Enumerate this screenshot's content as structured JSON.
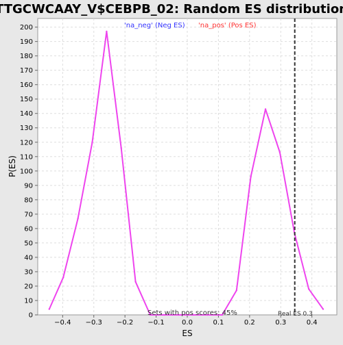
{
  "chart_data": {
    "type": "line",
    "title": "TTGCWCAAY_V$CEBPB_02: Random ES distribution",
    "xlabel": "ES",
    "ylabel": "P(ES)",
    "xlim": [
      -0.48,
      0.48
    ],
    "ylim": [
      0,
      206
    ],
    "x_ticks": [
      -0.4,
      -0.3,
      -0.2,
      -0.1,
      0.0,
      0.1,
      0.2,
      0.3,
      0.4
    ],
    "x_tick_labels": [
      "−0.4",
      "−0.3",
      "−0.2",
      "−0.1",
      "0.0",
      "0.1",
      "0.2",
      "0.3",
      "0.4"
    ],
    "y_ticks": [
      0,
      10,
      20,
      30,
      40,
      50,
      60,
      70,
      80,
      90,
      100,
      110,
      120,
      130,
      140,
      150,
      160,
      170,
      180,
      190,
      200
    ],
    "grid": true,
    "legend": {
      "placement": "top",
      "entries": [
        {
          "label": "'na_neg' (Neg ES)",
          "color": "#3333ff"
        },
        {
          "label": "'na_pos' (Pos ES)",
          "color": "#ff3333"
        }
      ]
    },
    "series": [
      {
        "color": "#ee44ee",
        "x": [
          -0.443,
          -0.398,
          -0.351,
          -0.305,
          -0.259,
          -0.212,
          -0.166,
          -0.119,
          -0.073,
          -0.027,
          0.019,
          0.065,
          0.112,
          0.158,
          0.204,
          0.251,
          0.297,
          0.344,
          0.39,
          0.436
        ],
        "y": [
          4,
          26,
          67,
          120,
          197,
          116,
          23,
          0,
          0,
          0,
          0,
          0,
          0,
          17,
          96,
          143,
          113,
          57,
          18,
          4
        ]
      }
    ],
    "vline": {
      "x": 0.345,
      "style": "dashed",
      "color": "#333333"
    },
    "annotations": {
      "pos_scores": "Sets with pos scores: 45%",
      "real_es": "Real ES 0.3"
    }
  }
}
